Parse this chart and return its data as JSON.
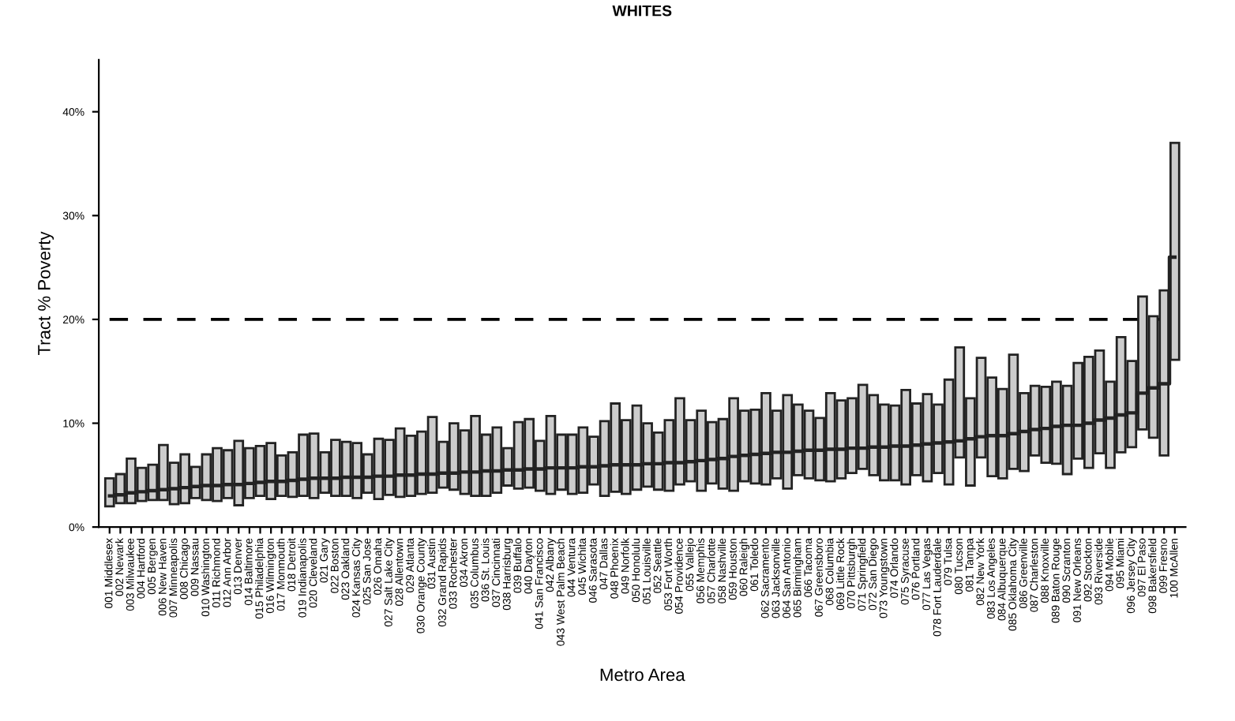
{
  "chart_data": {
    "type": "bar",
    "title": "WHITES",
    "xlabel": "Metro Area",
    "ylabel": "Tract % Poverty",
    "categories": [
      "001 Middlesex",
      "002 Newark",
      "003 Milwaukee",
      "004 Hartford",
      "005 Bergen",
      "006 New Haven",
      "007 Minneapolis",
      "008 Chicago",
      "009 Nassau",
      "010 Washington",
      "011 Richmond",
      "012 Ann Arbor",
      "013 Denver",
      "014 Baltimore",
      "015 Philadelphia",
      "016 Wilmington",
      "017 Monmouth",
      "018 Detroit",
      "019 Indianapolis",
      "020 Cleveland",
      "021 Gary",
      "022 Boston",
      "023 Oakland",
      "024 Kansas City",
      "025 San Jose",
      "026 Omaha",
      "027 Salt Lake City",
      "028 Allentown",
      "029 Atlanta",
      "030 Orange County",
      "031 Austin",
      "032 Grand Rapids",
      "033 Rochester",
      "034 Akron",
      "035 Columbus",
      "036 St. Louis",
      "037 Cincinnati",
      "038 Harrisburg",
      "039 Buffalo",
      "040 Dayton",
      "041 San Francisco",
      "042 Albany",
      "043 West Palm Beach",
      "044 Ventura",
      "045 Wichita",
      "046 Sarasota",
      "047 Dallas",
      "048 Phoenix",
      "049 Norfolk",
      "050 Honolulu",
      "051 Louisville",
      "052 Seattle",
      "053 Fort Worth",
      "054 Providence",
      "055 Vallejo",
      "056 Memphis",
      "057 Charlotte",
      "058 Nashville",
      "059 Houston",
      "060 Raleigh",
      "061 Toledo",
      "062 Sacramento",
      "063 Jacksonville",
      "064 San Antonio",
      "065 Birmingham",
      "066 Tacoma",
      "067 Greensboro",
      "068 Columbia",
      "069 Little Rock",
      "070 Pittsburgh",
      "071 Springfield",
      "072 San Diego",
      "073 Youngstown",
      "074 Orlando",
      "075 Syracuse",
      "076 Portland",
      "077 Las Vegas",
      "078 Fort Lauderdale",
      "079 Tulsa",
      "080 Tucson",
      "081 Tampa",
      "082 New York",
      "083 Los Angeles",
      "084 Albuquerque",
      "085 Oklahoma City",
      "086 Greenville",
      "087 Charleston",
      "088 Knoxville",
      "089 Baton Rouge",
      "090 Scranton",
      "091 New Orleans",
      "092 Stockton",
      "093 Riverside",
      "094 Mobile",
      "095 Miami",
      "096 Jersey City",
      "097 El Paso",
      "098 Bakersfield",
      "099 Fresno",
      "100 McAllen"
    ],
    "series": [
      {
        "color": "#cccccc",
        "base": [
          2.0,
          2.3,
          2.3,
          2.5,
          2.6,
          2.6,
          2.2,
          2.3,
          2.8,
          2.6,
          2.5,
          2.8,
          2.1,
          2.8,
          3.0,
          2.7,
          3.0,
          2.9,
          3.0,
          2.8,
          3.3,
          3.0,
          3.0,
          2.8,
          3.3,
          2.7,
          3.1,
          2.9,
          3.0,
          3.2,
          3.3,
          3.8,
          3.6,
          3.2,
          3.0,
          3.0,
          3.3,
          4.0,
          3.7,
          3.8,
          3.5,
          3.2,
          3.6,
          3.2,
          3.3,
          4.1,
          3.0,
          3.4,
          3.2,
          3.6,
          3.9,
          3.6,
          3.5,
          4.1,
          4.4,
          3.5,
          4.2,
          3.7,
          3.5,
          4.4,
          4.2,
          4.1,
          4.7,
          3.7,
          5.0,
          4.7,
          4.5,
          4.4,
          4.7,
          5.2,
          5.6,
          5.0,
          4.5,
          4.5,
          4.1,
          5.0,
          4.4,
          5.2,
          4.1,
          6.7,
          4.0,
          6.7,
          4.9,
          4.7,
          5.6,
          5.4,
          6.9,
          6.2,
          6.1,
          5.1,
          6.6,
          5.7,
          7.1,
          5.7,
          7.2,
          7.7,
          9.4,
          8.6,
          6.9,
          16.1
        ],
        "values": [
          2.7,
          2.8,
          4.3,
          3.2,
          3.4,
          5.3,
          4.0,
          4.7,
          3.0,
          4.4,
          5.1,
          4.6,
          6.2,
          4.8,
          4.8,
          5.4,
          3.9,
          4.3,
          5.9,
          6.2,
          3.9,
          5.4,
          5.2,
          5.3,
          3.7,
          5.8,
          5.3,
          6.6,
          5.8,
          6.0,
          7.3,
          4.4,
          6.4,
          6.1,
          7.7,
          5.9,
          6.3,
          3.6,
          6.4,
          6.6,
          4.8,
          7.5,
          5.3,
          5.7,
          6.3,
          4.6,
          7.2,
          8.5,
          7.1,
          8.1,
          6.1,
          5.5,
          6.8,
          8.3,
          5.9,
          7.7,
          5.9,
          6.7,
          8.9,
          6.8,
          7.1,
          8.8,
          6.5,
          9.0,
          6.8,
          6.5,
          6.0,
          8.5,
          7.5,
          7.2,
          8.1,
          7.7,
          7.3,
          7.2,
          9.1,
          6.9,
          8.4,
          6.6,
          10.1,
          10.6,
          8.4,
          9.6,
          9.5,
          8.6,
          11.0,
          7.5,
          6.7,
          7.3,
          7.9,
          8.5,
          9.2,
          10.7,
          9.9,
          8.3,
          11.1,
          8.3,
          12.8,
          11.7,
          15.9,
          20.9
        ]
      },
      {
        "type": "step",
        "color": "#222222",
        "values": [
          3.0,
          3.1,
          3.3,
          3.4,
          3.5,
          3.6,
          3.7,
          3.8,
          3.9,
          4.0,
          4.0,
          4.1,
          4.1,
          4.2,
          4.3,
          4.4,
          4.4,
          4.5,
          4.6,
          4.7,
          4.7,
          4.7,
          4.8,
          4.8,
          4.8,
          4.9,
          4.9,
          5.0,
          5.0,
          5.1,
          5.1,
          5.2,
          5.2,
          5.3,
          5.3,
          5.4,
          5.4,
          5.5,
          5.5,
          5.6,
          5.6,
          5.7,
          5.7,
          5.7,
          5.8,
          5.8,
          5.9,
          6.0,
          6.0,
          6.0,
          6.1,
          6.1,
          6.2,
          6.2,
          6.3,
          6.4,
          6.5,
          6.6,
          6.8,
          6.9,
          7.0,
          7.1,
          7.2,
          7.2,
          7.3,
          7.4,
          7.4,
          7.5,
          7.5,
          7.6,
          7.6,
          7.7,
          7.7,
          7.8,
          7.8,
          7.9,
          8.0,
          8.1,
          8.2,
          8.3,
          8.5,
          8.7,
          8.8,
          8.8,
          9.0,
          9.2,
          9.4,
          9.5,
          9.7,
          9.8,
          9.8,
          10.0,
          10.3,
          10.5,
          10.8,
          11.0,
          12.9,
          13.4,
          13.8,
          26.0
        ]
      }
    ],
    "ylim": [
      0,
      45
    ],
    "yticks": [
      {
        "value": 0,
        "label": "0%"
      },
      {
        "value": 10,
        "label": "10%"
      },
      {
        "value": 20,
        "label": "20%"
      },
      {
        "value": 30,
        "label": "30%"
      },
      {
        "value": 40,
        "label": "40%"
      }
    ],
    "ref_lines": [
      {
        "axis": "y",
        "value": 20,
        "line_style": "dashed",
        "color": "#000000"
      }
    ],
    "marker": "none",
    "line_style": "solid"
  }
}
